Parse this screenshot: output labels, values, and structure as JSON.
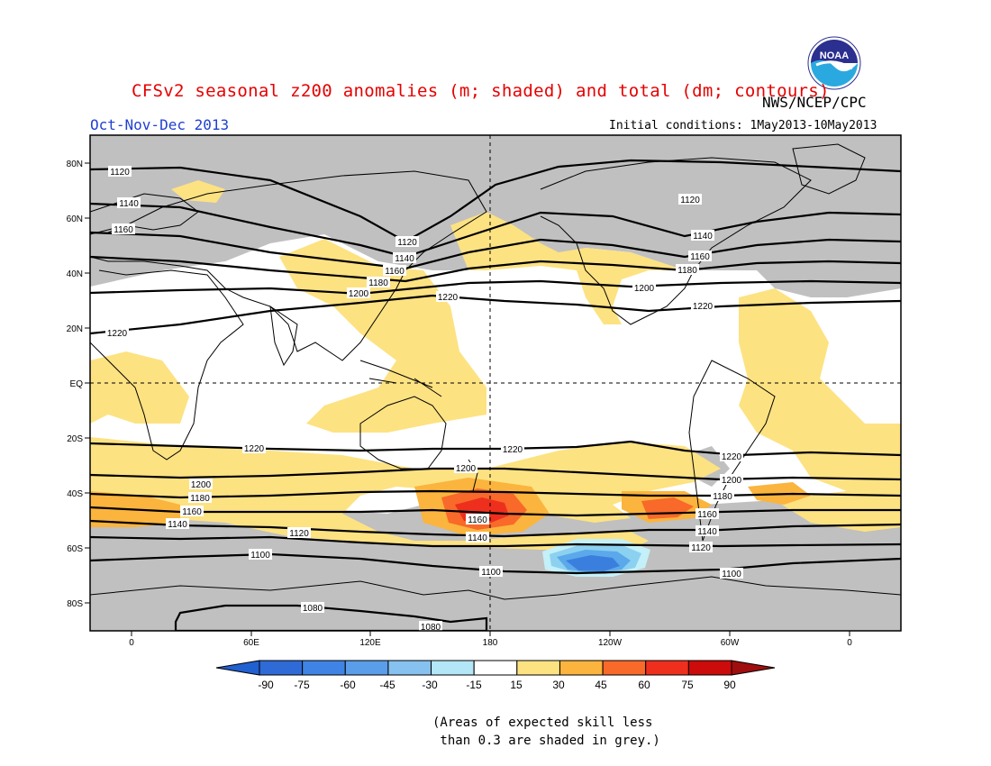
{
  "header": {
    "title": "CFSv2 seasonal z200 anomalies (m; shaded) and total (dm; contours)",
    "agency": "NWS/NCEP/CPC",
    "period": "Oct-Nov-Dec 2013",
    "initial_conditions": "Initial conditions: 1May2013-10May2013",
    "logo_text": "NOAA"
  },
  "map": {
    "projection": "cylindrical equidistant, central longitude 180",
    "lat_labels": [
      "80N",
      "60N",
      "40N",
      "20N",
      "EQ",
      "20S",
      "40S",
      "60S",
      "80S"
    ],
    "lon_labels": [
      "0",
      "60E",
      "120E",
      "180",
      "120W",
      "60W",
      "0"
    ],
    "contour_labels": [
      "1120",
      "1140",
      "1160",
      "1120",
      "1120",
      "1140",
      "1160",
      "1180",
      "1200",
      "1220",
      "1140",
      "1160",
      "1180",
      "1200",
      "1220",
      "1220",
      "1220",
      "1220",
      "1220",
      "1200",
      "1200",
      "1200",
      "1180",
      "1180",
      "1160",
      "1160",
      "1140",
      "1140",
      "1120",
      "1120",
      "1160",
      "1140",
      "1100",
      "1100",
      "1100",
      "1080",
      "1080"
    ],
    "contour_unit": "dm",
    "colors": {
      "grey_mask": "#c0c0c0",
      "land_outline": "#000000",
      "anom_pos_15": "#fde282",
      "anom_pos_30": "#fbb43d",
      "anom_pos_45": "#f8692a",
      "anom_pos_60": "#ee2f1d",
      "anom_neg_15": "#c4f0f9",
      "anom_neg_30": "#8cd1f0",
      "anom_neg_45": "#5ba9ea",
      "anom_neg_60": "#3b7fde"
    }
  },
  "colorbar": {
    "labels": [
      "-90",
      "-75",
      "-60",
      "-45",
      "-30",
      "-15",
      "15",
      "30",
      "45",
      "60",
      "75",
      "90"
    ],
    "colors": [
      "#2f6bd6",
      "#3f84e4",
      "#5a9de8",
      "#86c1ef",
      "#b3e6f6",
      "#ffffff",
      "#fde282",
      "#fbb43d",
      "#f8692a",
      "#ee2f1d",
      "#cc0c0a"
    ],
    "end_left": "#2060d0",
    "end_right": "#a00e0e"
  },
  "footnote": "(Areas of expected skill less\n than 0.3 are shaded in grey.)"
}
